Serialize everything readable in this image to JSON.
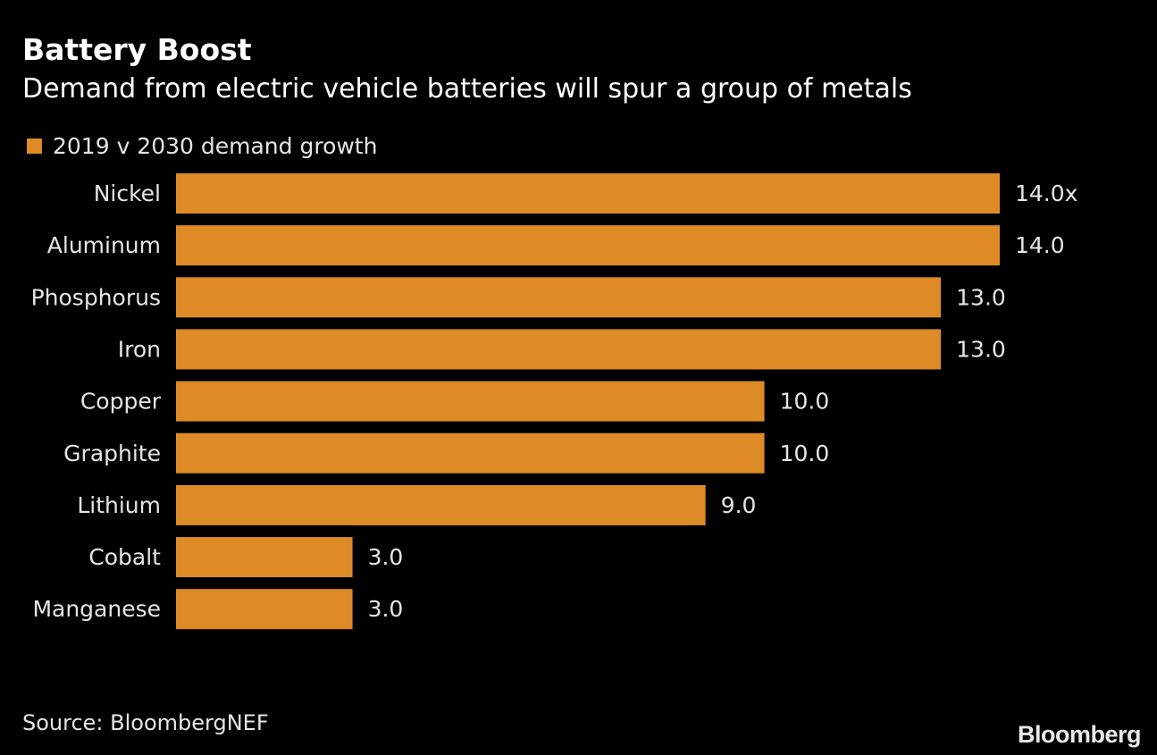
{
  "header": {
    "title": "Battery Boost",
    "subtitle": "Demand from electric vehicle batteries will spur a group of metals"
  },
  "legend": {
    "label": "2019 v 2030 demand growth"
  },
  "footer": {
    "source": "Source: BloombergNEF",
    "brand": "Bloomberg"
  },
  "colors": {
    "background": "#000000",
    "bar": "#de8a26",
    "text": "#ffffff"
  },
  "chart_data": {
    "type": "bar",
    "orientation": "horizontal",
    "title": "Battery Boost",
    "subtitle": "Demand from electric vehicle batteries will spur a group of metals",
    "categories": [
      "Nickel",
      "Aluminum",
      "Phosphorus",
      "Iron",
      "Copper",
      "Graphite",
      "Lithium",
      "Cobalt",
      "Manganese"
    ],
    "series": [
      {
        "name": "2019 v 2030 demand growth",
        "values": [
          14.0,
          14.0,
          13.0,
          13.0,
          10.0,
          10.0,
          9.0,
          3.0,
          3.0
        ],
        "labels": [
          "14.0x",
          "14.0",
          "13.0",
          "13.0",
          "10.0",
          "10.0",
          "9.0",
          "3.0",
          "3.0"
        ]
      }
    ],
    "xlim": [
      0,
      14
    ],
    "grid": false,
    "legend_position": "top-left",
    "source": "Source: BloombergNEF"
  }
}
